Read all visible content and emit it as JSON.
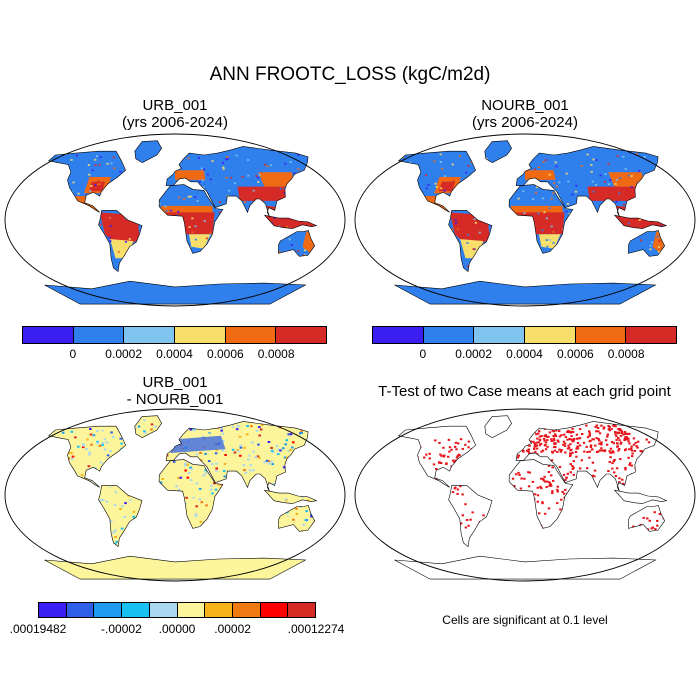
{
  "main_title": "ANN FROOTC_LOSS (kgC/m2d)",
  "panels": [
    {
      "title": "URB_001\n(yrs 2006-2024)",
      "kind": "field"
    },
    {
      "title": "NOURB_001\n(yrs 2006-2024)",
      "kind": "field"
    },
    {
      "title": "URB_001\n- NOURB_001",
      "kind": "diff"
    },
    {
      "title": "T-Test of two Case means at each grid point",
      "kind": "ttest"
    }
  ],
  "colorbar_field": {
    "colors": [
      "#3b1ff2",
      "#2f80ed",
      "#7fc4ee",
      "#f8de6b",
      "#f06a14",
      "#d62a27"
    ],
    "labels": [
      "0",
      "0.0002",
      "0.0004",
      "0.0006",
      "0.0008"
    ]
  },
  "colorbar_diff": {
    "colors": [
      "#3b1ff2",
      "#2f5fe8",
      "#1f9bf0",
      "#19c0f2",
      "#a9d8f0",
      "#fdf59c",
      "#f8b21a",
      "#f07a12",
      "#ff0000",
      "#d62a27"
    ],
    "labels": [
      ".00019482",
      "-.00002",
      ".00000",
      ".00002",
      ".00012274"
    ]
  },
  "note": "Cells are significant at 0.1 level",
  "colors": {
    "land_base": "#2f80ed",
    "ocean": "#ffffff",
    "antarctica_field": "#2f80ed",
    "antarctica_diff": "#fdf59c",
    "significant": "#e8141b"
  }
}
